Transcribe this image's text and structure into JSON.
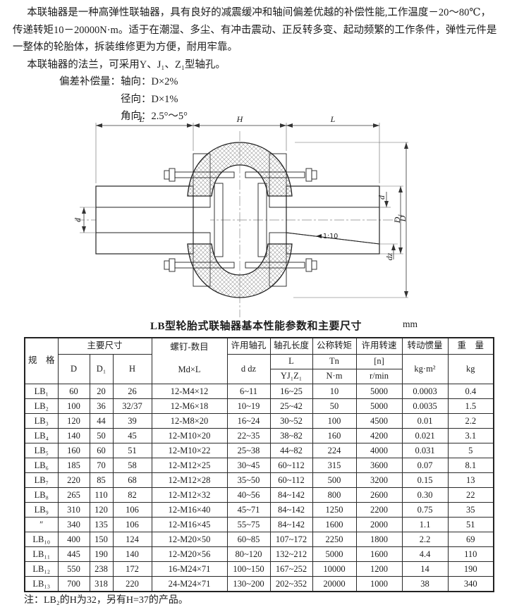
{
  "intro": {
    "p1": "本联轴器是一种高弹性联轴器，具有良好的减震缓冲和轴间偏差优越的补偿性能,工作温度－20～80℃，传递转矩10－20000N·m。适于在潮湿、多尘、有冲击震动、正反转多变、起动频繁的工作条件，弹性元件是一整体的轮胎体，拆装维修更为方便，耐用牢靠。",
    "p2": "本联轴器的法兰，可采用Y、J₁、Z₁型轴孔。"
  },
  "compensation": {
    "label": "偏差补偿量：",
    "axial": "轴向：D×2%",
    "radial": "径向：D×1%",
    "angular": "角向：2.5°～5°"
  },
  "drawing": {
    "labels": {
      "top_left_l": "L",
      "top_h": "H",
      "top_right_l": "L",
      "left_d": "d",
      "right_d": "d",
      "right_dz": "dz",
      "right_d1": "D₁",
      "right_big_d": "D",
      "taper": "1:10"
    }
  },
  "table": {
    "title": "LB型轮胎式联轴器基本性能参数和主要尺寸",
    "unit": "mm",
    "header": {
      "spec": "规　格",
      "main_dims": "主要尺寸",
      "d": "D",
      "d1": "D₁",
      "h": "H",
      "screws": "螺钉-数目",
      "screws_sub": "Md×L",
      "bore": "许用轴孔",
      "bore_sub": "d dz",
      "bore_len": "轴孔长度",
      "bore_len_l": "L",
      "bore_len_types": "YJ₁Z₁",
      "torque": "公称转矩",
      "torque_sym": "Tn",
      "torque_unit": "N·m",
      "speed": "许用转速",
      "speed_sym": "[n]",
      "speed_unit": "r/min",
      "inertia": "转动惯量",
      "inertia_unit": "kg·m²",
      "weight": "重　量",
      "weight_unit": "kg"
    },
    "rows": [
      [
        "LB₁",
        "60",
        "20",
        "26",
        "12-M4×12",
        "6~11",
        "16~25",
        "10",
        "5000",
        "0.0003",
        "0.4"
      ],
      [
        "LB₂",
        "100",
        "36",
        "32/37",
        "12-M6×18",
        "10~19",
        "25~42",
        "50",
        "5000",
        "0.0035",
        "1.5"
      ],
      [
        "LB₃",
        "120",
        "44",
        "39",
        "12-M8×20",
        "16~24",
        "30~52",
        "100",
        "4500",
        "0.01",
        "2.2"
      ],
      [
        "LB₄",
        "140",
        "50",
        "45",
        "12-M10×20",
        "22~35",
        "38~82",
        "160",
        "4200",
        "0.021",
        "3.1"
      ],
      [
        "LB₅",
        "160",
        "60",
        "51",
        "12-M10×22",
        "25~38",
        "44~82",
        "224",
        "4000",
        "0.031",
        "5"
      ],
      [
        "LB₆",
        "185",
        "70",
        "58",
        "12-M12×25",
        "30~45",
        "60~112",
        "315",
        "3600",
        "0.07",
        "8.1"
      ],
      [
        "LB₇",
        "220",
        "85",
        "68",
        "12-M12×28",
        "35~50",
        "60~112",
        "500",
        "3200",
        "0.15",
        "13"
      ],
      [
        "LB₈",
        "265",
        "110",
        "82",
        "12-M12×32",
        "40~56",
        "84~142",
        "800",
        "2600",
        "0.30",
        "22"
      ],
      [
        "LB₉",
        "310",
        "120",
        "106",
        "12-M16×40",
        "45~71",
        "84~142",
        "1250",
        "2200",
        "0.75",
        "35"
      ],
      [
        "″",
        "340",
        "135",
        "106",
        "12-M16×45",
        "55~75",
        "84~142",
        "1600",
        "2000",
        "1.1",
        "51"
      ],
      [
        "LB₁₀",
        "400",
        "150",
        "124",
        "12-M20×50",
        "60~85",
        "107~172",
        "2250",
        "1800",
        "2.2",
        "69"
      ],
      [
        "LB₁₁",
        "445",
        "190",
        "140",
        "12-M20×56",
        "80~120",
        "132~212",
        "5000",
        "1600",
        "4.4",
        "110"
      ],
      [
        "LB₁₂",
        "550",
        "238",
        "172",
        "16-M24×71",
        "100~150",
        "167~252",
        "10000",
        "1200",
        "14",
        "190"
      ],
      [
        "LB₁₃",
        "700",
        "318",
        "220",
        "24-M24×71",
        "130~200",
        "202~352",
        "20000",
        "1000",
        "38",
        "340"
      ]
    ]
  },
  "note": "注：LB₂的H为32，另有H=37的产品。"
}
